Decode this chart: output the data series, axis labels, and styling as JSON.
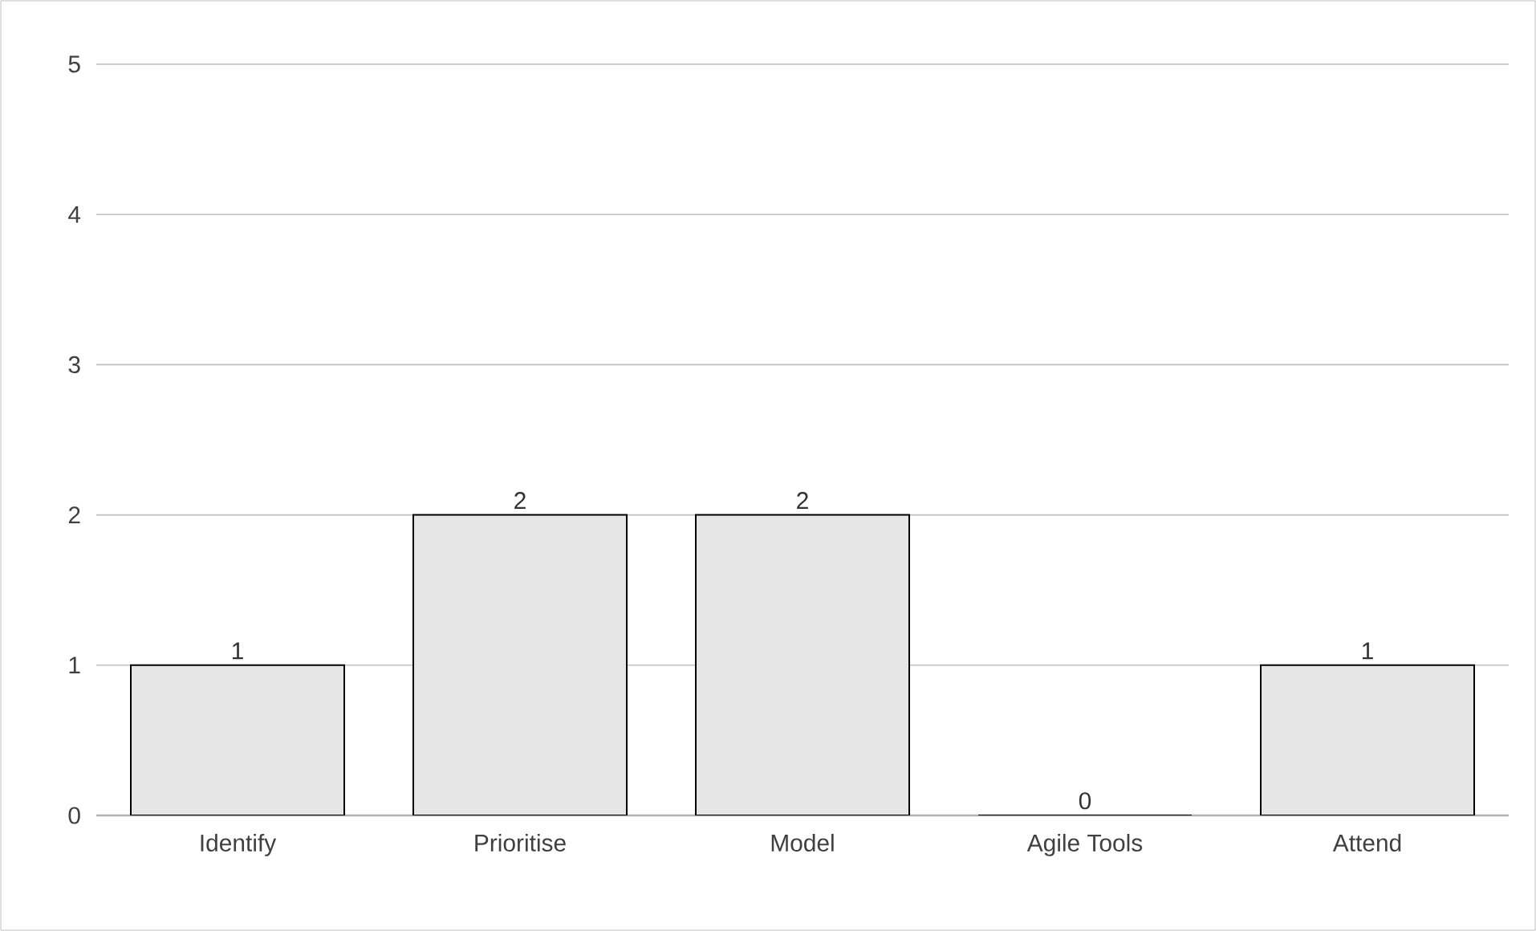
{
  "chart_data": {
    "type": "bar",
    "categories": [
      "Identify",
      "Prioritise",
      "Model",
      "Agile Tools",
      "Attend"
    ],
    "values": [
      1,
      2,
      2,
      0,
      1
    ],
    "color": "#e6e6e6",
    "ylim": [
      0,
      5
    ],
    "yticks": [
      0,
      1,
      2,
      3,
      4,
      5
    ],
    "grid": "y",
    "data_labels": true
  }
}
